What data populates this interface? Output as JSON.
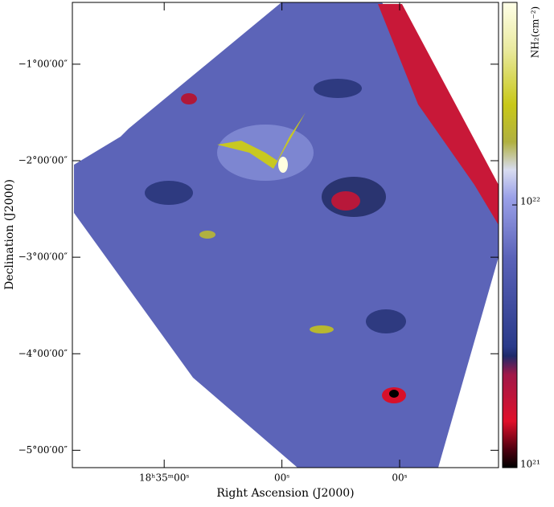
{
  "chart_data": {
    "type": "image",
    "xlabel": "Right Ascension (J2000)",
    "ylabel": "Declination (J2000)",
    "xlim": [
      35.78,
      32.16
    ],
    "xticks": [
      {
        "value": 35,
        "label": "18ʰ35ᵐ00ˢ"
      },
      {
        "value": 34,
        "label": "00ˢ"
      },
      {
        "value": 33,
        "label": "00ˢ"
      }
    ],
    "ylim": [
      -5.18,
      -0.36
    ],
    "yticks": [
      {
        "value": -1,
        "label": "−1°00′00″"
      },
      {
        "value": -2,
        "label": "−2°00′00″"
      },
      {
        "value": -3,
        "label": "−3°00′00″"
      },
      {
        "value": -4,
        "label": "−4°00′00″"
      },
      {
        "value": -5,
        "label": "−5°00′00″"
      }
    ],
    "colorbar": {
      "label": "NH₂(cm⁻²)",
      "log": true,
      "lim": [
        1e+21,
        5.9e+22
      ],
      "ticks": [
        {
          "value": 1e+21,
          "label": "10²¹"
        },
        {
          "value": 1e+22,
          "label": "10²²"
        }
      ]
    }
  }
}
